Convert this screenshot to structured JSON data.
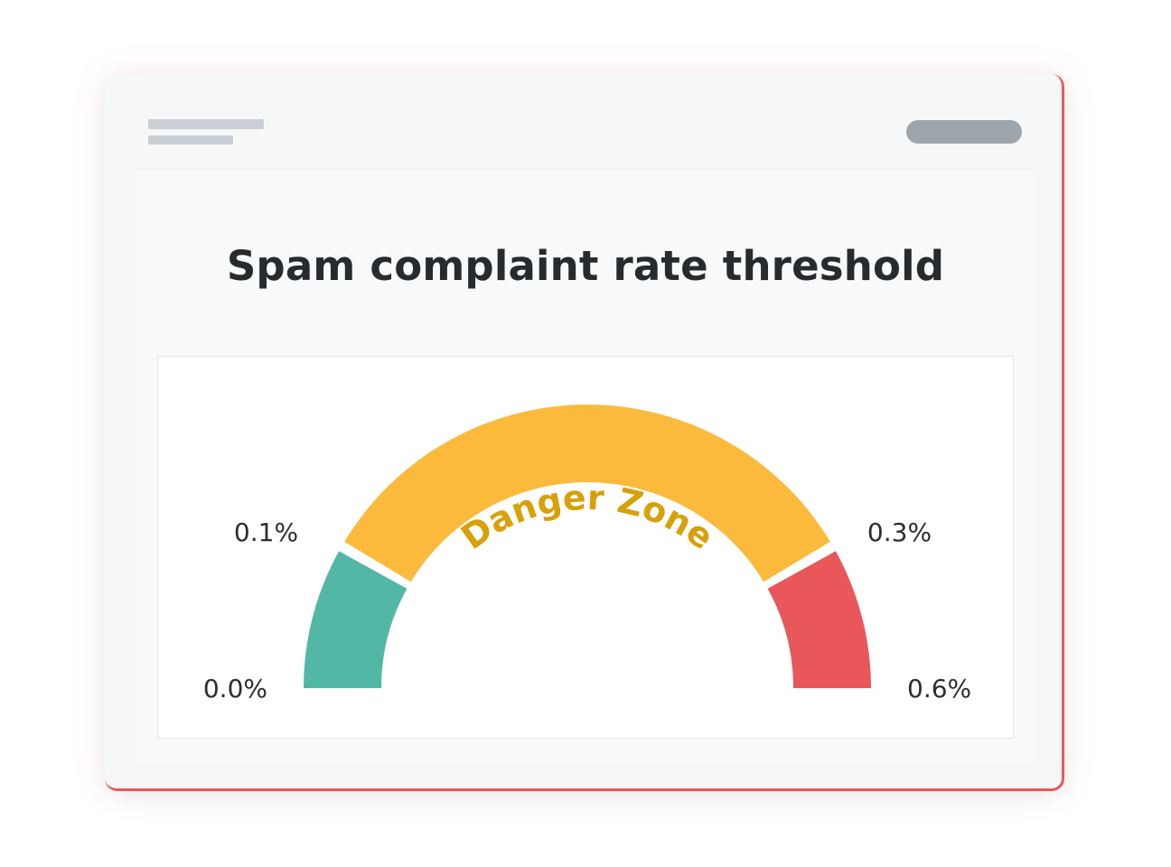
{
  "chart_data": {
    "type": "gauge",
    "title": "Spam complaint rate threshold",
    "min": 0.0,
    "max": 0.6,
    "segments": [
      {
        "from": 0.0,
        "to": 0.1,
        "color": "#52b8a5"
      },
      {
        "from": 0.1,
        "to": 0.3,
        "color": "#fbba3c",
        "label": "Danger Zone",
        "label_color": "#d8a009"
      },
      {
        "from": 0.3,
        "to": 0.6,
        "color": "#e9575a"
      }
    ],
    "tick_labels": [
      {
        "value": 0.0,
        "text": "0.0%"
      },
      {
        "value": 0.1,
        "text": "0.1%"
      },
      {
        "value": 0.3,
        "text": "0.3%"
      },
      {
        "value": 0.6,
        "text": "0.6%"
      }
    ]
  }
}
